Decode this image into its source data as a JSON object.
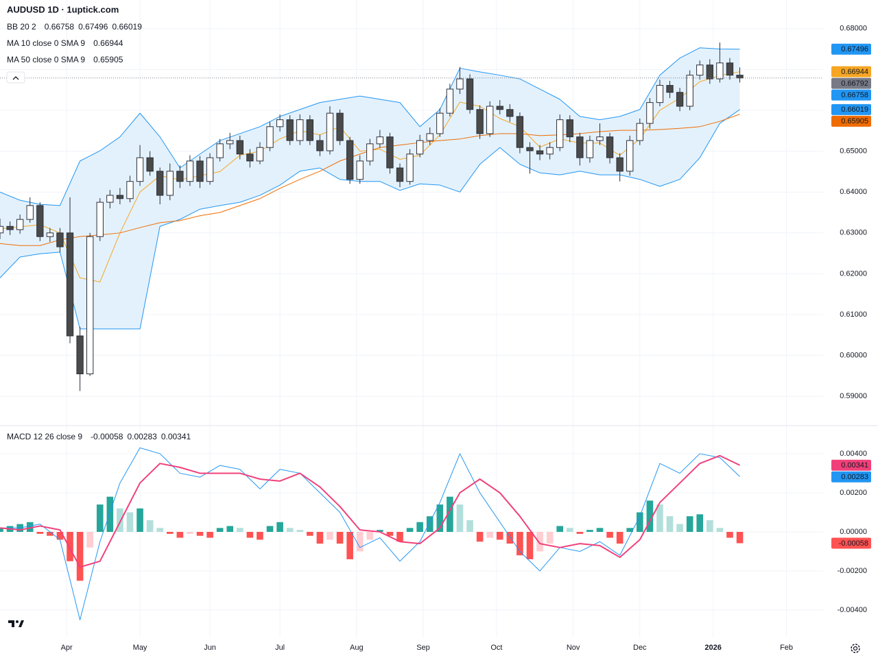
{
  "chart_data": [
    {
      "type": "candlestick",
      "title": "AUDUSD 1D · 1uptick.com",
      "x": [
        0,
        3,
        6,
        9,
        12,
        15,
        18,
        21,
        24,
        27,
        30,
        33,
        36,
        39,
        42,
        45,
        48,
        51,
        54,
        57,
        60,
        63,
        66,
        69,
        72,
        75,
        78,
        81,
        84,
        87,
        90,
        93,
        96,
        99,
        102,
        105,
        108,
        111,
        114,
        117,
        120,
        123,
        126,
        129,
        132,
        135,
        138,
        141,
        144,
        147,
        150,
        153,
        156,
        159,
        162,
        165,
        168,
        171,
        174,
        177,
        180,
        183,
        186,
        189,
        192,
        195,
        198,
        201,
        204,
        207,
        210,
        213,
        216,
        219,
        222
      ],
      "open": [
        0.63,
        0.6316,
        0.6308,
        0.6333,
        0.6367,
        0.6291,
        0.63,
        0.63,
        0.6048,
        0.5955,
        0.6291,
        0.6375,
        0.6392,
        0.6384,
        0.6426,
        0.6484,
        0.6451,
        0.6392,
        0.6451,
        0.6426,
        0.6476,
        0.6426,
        0.6484,
        0.6518,
        0.6526,
        0.6493,
        0.6476,
        0.6509,
        0.656,
        0.6577,
        0.6526,
        0.6577,
        0.6526,
        0.6501,
        0.6593,
        0.6526,
        0.6431,
        0.6476,
        0.6518,
        0.6535,
        0.6459,
        0.6426,
        0.6493,
        0.6526,
        0.6543,
        0.6593,
        0.6652,
        0.6677,
        0.6602,
        0.6543,
        0.661,
        0.6602,
        0.6585,
        0.6509,
        0.6501,
        0.6493,
        0.6509,
        0.6577,
        0.6535,
        0.6484,
        0.6526,
        0.6535,
        0.6484,
        0.6451,
        0.6526,
        0.6568,
        0.6619,
        0.6661,
        0.6644,
        0.661,
        0.6686,
        0.6711,
        0.6677,
        0.6716,
        0.6686
      ],
      "high": [
        0.6335,
        0.6328,
        0.6345,
        0.6387,
        0.6375,
        0.6312,
        0.6312,
        0.6387,
        0.607,
        0.63,
        0.6385,
        0.6405,
        0.641,
        0.644,
        0.6515,
        0.65,
        0.646,
        0.647,
        0.6465,
        0.649,
        0.6488,
        0.6495,
        0.653,
        0.6545,
        0.6538,
        0.6505,
        0.6522,
        0.6572,
        0.659,
        0.6588,
        0.659,
        0.6588,
        0.654,
        0.661,
        0.6602,
        0.6535,
        0.649,
        0.653,
        0.6552,
        0.6545,
        0.647,
        0.6505,
        0.654,
        0.6558,
        0.6605,
        0.6665,
        0.6706,
        0.6688,
        0.6612,
        0.6622,
        0.6625,
        0.6615,
        0.6595,
        0.6522,
        0.6515,
        0.6522,
        0.659,
        0.6588,
        0.6545,
        0.6538,
        0.6568,
        0.6545,
        0.6495,
        0.6538,
        0.658,
        0.663,
        0.6675,
        0.6672,
        0.6655,
        0.6698,
        0.6722,
        0.6725,
        0.6766,
        0.6728,
        0.6705
      ],
      "low": [
        0.6285,
        0.6295,
        0.6298,
        0.6325,
        0.628,
        0.6278,
        0.6252,
        0.603,
        0.5913,
        0.595,
        0.628,
        0.636,
        0.637,
        0.6375,
        0.6415,
        0.644,
        0.637,
        0.638,
        0.641,
        0.6415,
        0.641,
        0.6418,
        0.6475,
        0.6505,
        0.648,
        0.646,
        0.6468,
        0.65,
        0.6548,
        0.6515,
        0.6515,
        0.6515,
        0.6488,
        0.6492,
        0.6515,
        0.642,
        0.642,
        0.6465,
        0.6508,
        0.6445,
        0.6412,
        0.6418,
        0.6485,
        0.6515,
        0.6535,
        0.6585,
        0.664,
        0.6592,
        0.653,
        0.6535,
        0.659,
        0.6572,
        0.6495,
        0.6445,
        0.6478,
        0.648,
        0.65,
        0.6522,
        0.6465,
        0.6472,
        0.6515,
        0.647,
        0.6426,
        0.644,
        0.6515,
        0.6555,
        0.661,
        0.663,
        0.6598,
        0.66,
        0.6675,
        0.6665,
        0.6668,
        0.6675,
        0.6668
      ],
      "close": [
        0.6316,
        0.6308,
        0.6333,
        0.6367,
        0.6291,
        0.63,
        0.6266,
        0.6048,
        0.5955,
        0.6291,
        0.6375,
        0.6392,
        0.6384,
        0.6426,
        0.6484,
        0.6451,
        0.6392,
        0.6451,
        0.6426,
        0.6476,
        0.6426,
        0.6484,
        0.6518,
        0.6526,
        0.6493,
        0.6476,
        0.6509,
        0.656,
        0.6577,
        0.6526,
        0.6577,
        0.6526,
        0.6501,
        0.6593,
        0.6526,
        0.6431,
        0.6476,
        0.6518,
        0.6535,
        0.6459,
        0.6426,
        0.6493,
        0.6526,
        0.6543,
        0.6593,
        0.6652,
        0.6677,
        0.6602,
        0.6543,
        0.661,
        0.6602,
        0.6585,
        0.6509,
        0.6501,
        0.6493,
        0.6509,
        0.6577,
        0.6535,
        0.6484,
        0.6526,
        0.6535,
        0.6484,
        0.6451,
        0.6526,
        0.6568,
        0.6619,
        0.6661,
        0.6644,
        0.661,
        0.6686,
        0.6711,
        0.6677,
        0.6716,
        0.6686,
        0.66792
      ],
      "up_color": "#ffffff",
      "down_color": "#4a4a4a",
      "wick_color": "#2a2e39",
      "last_price_color": "#787b86",
      "bands": {
        "name": "BB 20 2",
        "color": "#2196f3",
        "fill": "#e3f1fc",
        "basis_value": 0.66758,
        "x": [
          0,
          6,
          12,
          18,
          24,
          30,
          36,
          42,
          48,
          54,
          60,
          66,
          72,
          78,
          84,
          90,
          96,
          102,
          108,
          114,
          120,
          126,
          132,
          138,
          144,
          150,
          156,
          162,
          168,
          174,
          180,
          186,
          192,
          198,
          204,
          210,
          216,
          222
        ],
        "upper": [
          0.64,
          0.638,
          0.637,
          0.6367,
          0.6476,
          0.6501,
          0.6535,
          0.6593,
          0.6535,
          0.6459,
          0.6493,
          0.6526,
          0.6543,
          0.656,
          0.6585,
          0.6602,
          0.6619,
          0.6627,
          0.6635,
          0.6627,
          0.6619,
          0.656,
          0.6602,
          0.6703,
          0.6694,
          0.6686,
          0.6677,
          0.6652,
          0.6627,
          0.6585,
          0.6577,
          0.6585,
          0.6602,
          0.6686,
          0.6728,
          0.6753,
          0.675,
          0.67496
        ],
        "lower": [
          0.619,
          0.6241,
          0.6249,
          0.6253,
          0.6065,
          0.6065,
          0.6065,
          0.6065,
          0.6316,
          0.6333,
          0.6358,
          0.6367,
          0.6375,
          0.6392,
          0.6417,
          0.6451,
          0.6459,
          0.6431,
          0.6426,
          0.6426,
          0.6404,
          0.642,
          0.6417,
          0.64,
          0.6468,
          0.6509,
          0.6468,
          0.6447,
          0.6442,
          0.6451,
          0.6442,
          0.6442,
          0.6431,
          0.6414,
          0.6431,
          0.6484,
          0.6568,
          0.66019
        ]
      },
      "series": [
        {
          "name": "MA 10 close 0 SMA 9",
          "color": "#f6a623",
          "x": [
            0,
            6,
            12,
            18,
            24,
            30,
            36,
            42,
            48,
            54,
            60,
            66,
            72,
            78,
            84,
            90,
            96,
            102,
            108,
            114,
            120,
            126,
            132,
            138,
            144,
            150,
            156,
            162,
            168,
            174,
            180,
            186,
            192,
            198,
            204,
            210,
            216,
            222
          ],
          "values": [
            0.631,
            0.6315,
            0.632,
            0.63,
            0.619,
            0.618,
            0.63,
            0.64,
            0.644,
            0.643,
            0.644,
            0.645,
            0.649,
            0.65,
            0.653,
            0.655,
            0.654,
            0.656,
            0.65,
            0.6505,
            0.648,
            0.649,
            0.654,
            0.662,
            0.661,
            0.658,
            0.656,
            0.651,
            0.653,
            0.652,
            0.652,
            0.649,
            0.653,
            0.66,
            0.663,
            0.667,
            0.6685,
            0.66944
          ]
        },
        {
          "name": "MA 50 close 0 SMA 9",
          "color": "#ef6c00",
          "x": [
            0,
            6,
            12,
            18,
            24,
            30,
            36,
            42,
            48,
            54,
            60,
            66,
            72,
            78,
            84,
            90,
            96,
            102,
            108,
            114,
            120,
            126,
            132,
            138,
            144,
            150,
            156,
            162,
            168,
            174,
            180,
            186,
            192,
            198,
            204,
            210,
            216,
            222
          ],
          "values": [
            0.6274,
            0.6269,
            0.6269,
            0.6283,
            0.6291,
            0.6295,
            0.63,
            0.6313,
            0.6325,
            0.633,
            0.6342,
            0.635,
            0.6367,
            0.6384,
            0.6409,
            0.6431,
            0.6451,
            0.6476,
            0.6493,
            0.6509,
            0.6515,
            0.6521,
            0.6526,
            0.653,
            0.6538,
            0.6543,
            0.6543,
            0.6538,
            0.654,
            0.6543,
            0.6548,
            0.6551,
            0.6551,
            0.6553,
            0.6556,
            0.656,
            0.6573,
            0.65905
          ]
        }
      ],
      "xlim": [
        0,
        247
      ],
      "xticks": [
        {
          "value": 20,
          "label": "Apr"
        },
        {
          "value": 42,
          "label": "May"
        },
        {
          "value": 63,
          "label": "Jun"
        },
        {
          "value": 84,
          "label": "Jul"
        },
        {
          "value": 107,
          "label": "Aug"
        },
        {
          "value": 127,
          "label": "Sep"
        },
        {
          "value": 149,
          "label": "Oct"
        },
        {
          "value": 172,
          "label": "Nov"
        },
        {
          "value": 192,
          "label": "Dec"
        },
        {
          "value": 214,
          "label": "2026"
        },
        {
          "value": 236,
          "label": "Feb"
        }
      ],
      "ylim": [
        0.583,
        0.687
      ],
      "yticks": [
        {
          "value": 0.59,
          "label": "0.59000"
        },
        {
          "value": 0.6,
          "label": "0.60000"
        },
        {
          "value": 0.61,
          "label": "0.61000"
        },
        {
          "value": 0.62,
          "label": "0.62000"
        },
        {
          "value": 0.63,
          "label": "0.63000"
        },
        {
          "value": 0.64,
          "label": "0.64000"
        },
        {
          "value": 0.65,
          "label": "0.65000"
        },
        {
          "value": 0.66,
          "label": "0.66000"
        },
        {
          "value": 0.67,
          "label": "0.67000"
        },
        {
          "value": 0.68,
          "label": "0.68000"
        }
      ],
      "grid": true
    },
    {
      "type": "macd",
      "title": "MACD 12 26 close 9",
      "x": [
        0,
        3,
        6,
        9,
        12,
        15,
        18,
        21,
        24,
        27,
        30,
        33,
        36,
        39,
        42,
        45,
        48,
        51,
        54,
        57,
        60,
        63,
        66,
        69,
        72,
        75,
        78,
        81,
        84,
        87,
        90,
        93,
        96,
        99,
        102,
        105,
        108,
        111,
        114,
        117,
        120,
        123,
        126,
        129,
        132,
        135,
        138,
        141,
        144,
        147,
        150,
        153,
        156,
        159,
        162,
        165,
        168,
        171,
        174,
        177,
        180,
        183,
        186,
        189,
        192,
        195,
        198,
        201,
        204,
        207,
        210,
        213,
        216,
        219,
        222
      ],
      "histogram": [
        0.0002,
        0.0003,
        0.0004,
        0.0005,
        -0.0001,
        -0.0002,
        -0.0004,
        -0.0015,
        -0.0025,
        -0.0008,
        0.0014,
        0.0018,
        0.0012,
        0.001,
        0.0012,
        0.0006,
        0.0002,
        -0.0001,
        -0.0003,
        -0.0001,
        -0.0002,
        -0.0003,
        0.0002,
        0.0003,
        0.0002,
        -0.0003,
        -0.0004,
        0.0003,
        0.0005,
        0.0002,
        0.0001,
        -0.0002,
        -0.0006,
        -0.0004,
        -0.0006,
        -0.0014,
        -0.001,
        -0.0004,
        0.0001,
        -0.0002,
        -0.0005,
        0.0002,
        0.0005,
        0.0008,
        0.0014,
        0.0018,
        0.0014,
        0.0006,
        -0.0005,
        -0.0003,
        -0.0004,
        -0.0006,
        -0.0012,
        -0.0014,
        -0.001,
        -0.0006,
        0.0003,
        0.0002,
        -0.0001,
        0.0001,
        0.0002,
        -0.0003,
        -0.0006,
        0.0002,
        0.001,
        0.0016,
        0.0014,
        0.0008,
        0.0004,
        0.0008,
        0.0009,
        0.0006,
        0.0002,
        -0.0003,
        -0.00058
      ],
      "histogram_colors": [
        "#26a69a",
        "#b2dfdb",
        "#ff5252",
        "#ffcdd2"
      ],
      "macd_line": {
        "color": "#2196f3",
        "x": [
          0,
          6,
          12,
          18,
          24,
          30,
          36,
          42,
          48,
          54,
          60,
          66,
          72,
          78,
          84,
          90,
          96,
          102,
          108,
          114,
          120,
          126,
          132,
          138,
          144,
          150,
          156,
          162,
          168,
          174,
          180,
          186,
          192,
          198,
          204,
          210,
          216,
          222
        ],
        "values": [
          0.0002,
          0.0002,
          0.0004,
          -0.0004,
          -0.0045,
          -0.0005,
          0.0025,
          0.0043,
          0.004,
          0.003,
          0.0028,
          0.0034,
          0.0032,
          0.0022,
          0.0032,
          0.003,
          0.002,
          0.001,
          -0.0008,
          -0.0003,
          -0.0015,
          -0.0005,
          0.0015,
          0.004,
          0.002,
          0.0005,
          -0.001,
          -0.002,
          -0.0008,
          -0.001,
          -0.0005,
          -0.0012,
          0.0008,
          0.0035,
          0.003,
          0.004,
          0.0038,
          0.00283
        ]
      },
      "signal_line": {
        "color": "#f0407a",
        "x": [
          0,
          6,
          12,
          18,
          24,
          30,
          36,
          42,
          48,
          54,
          60,
          66,
          72,
          78,
          84,
          90,
          96,
          102,
          108,
          114,
          120,
          126,
          132,
          138,
          144,
          150,
          156,
          162,
          168,
          174,
          180,
          186,
          192,
          198,
          204,
          210,
          216,
          222
        ],
        "values": [
          0.0002,
          0.0001,
          0.0003,
          0.0001,
          -0.0018,
          -0.0015,
          0.0005,
          0.0025,
          0.0035,
          0.0033,
          0.003,
          0.003,
          0.003,
          0.0027,
          0.0026,
          0.003,
          0.0023,
          0.0013,
          0.0001,
          0.0,
          -0.0005,
          -0.0006,
          0.0002,
          0.002,
          0.0027,
          0.002,
          0.0008,
          -0.0006,
          -0.0008,
          -0.0006,
          -0.0007,
          -0.0013,
          -0.0004,
          0.0015,
          0.0025,
          0.0035,
          0.0039,
          0.00341
        ]
      },
      "xlim": [
        0,
        247
      ],
      "ylim": [
        -0.0054,
        0.0054
      ],
      "yticks": [
        {
          "value": -0.004,
          "label": "-0.00400"
        },
        {
          "value": -0.002,
          "label": "-0.00200"
        },
        {
          "value": 0,
          "label": "0.00000"
        },
        {
          "value": 0.002,
          "label": "0.00200"
        },
        {
          "value": 0.004,
          "label": "0.00400"
        }
      ],
      "grid": true
    }
  ]
}
